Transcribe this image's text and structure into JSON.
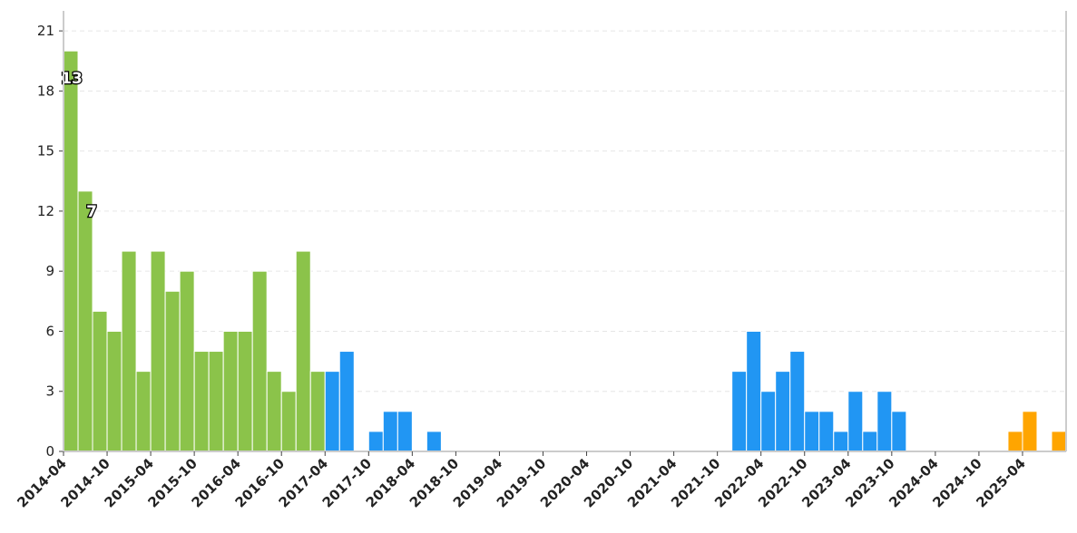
{
  "chart_data": {
    "type": "histogram",
    "bins": [
      "2014-04",
      "2014-06",
      "2014-08",
      "2014-10",
      "2014-12",
      "2015-02",
      "2015-04",
      "2015-06",
      "2015-08",
      "2015-10",
      "2015-12",
      "2016-02",
      "2016-04",
      "2016-06",
      "2016-08",
      "2016-10",
      "2016-12",
      "2017-02",
      "2017-04",
      "2017-06",
      "2017-08",
      "2017-10",
      "2017-12",
      "2018-02",
      "2018-04",
      "2018-06",
      "2018-08",
      "2018-10",
      "2018-12",
      "2019-02",
      "2019-04",
      "2019-06",
      "2019-08",
      "2019-10",
      "2019-12",
      "2020-02",
      "2020-04",
      "2020-06",
      "2020-08",
      "2020-10",
      "2020-12",
      "2021-02",
      "2021-04",
      "2021-06",
      "2021-08",
      "2021-10",
      "2021-12",
      "2022-02",
      "2022-04",
      "2022-06",
      "2022-08",
      "2022-10",
      "2022-12",
      "2023-02",
      "2023-04",
      "2023-06",
      "2023-08",
      "2023-10",
      "2023-12",
      "2024-02",
      "2024-04",
      "2024-06",
      "2024-08",
      "2024-10",
      "2024-12",
      "2025-02",
      "2025-04",
      "2025-06",
      "2025-08",
      "2025-10"
    ],
    "values": [
      20,
      13,
      7,
      6,
      10,
      4,
      10,
      8,
      9,
      5,
      5,
      6,
      6,
      9,
      4,
      3,
      10,
      4,
      4,
      5,
      0,
      1,
      2,
      2,
      0,
      1,
      0,
      0,
      0,
      0,
      0,
      0,
      0,
      0,
      0,
      0,
      0,
      0,
      0,
      0,
      0,
      0,
      0,
      0,
      0,
      0,
      4,
      6,
      3,
      4,
      5,
      2,
      2,
      1,
      3,
      1,
      3,
      2,
      0,
      0,
      0,
      0,
      0,
      0,
      0,
      1,
      2,
      0,
      1
    ],
    "colors": [
      "#8bc34a",
      "#8bc34a",
      "#8bc34a",
      "#8bc34a",
      "#8bc34a",
      "#8bc34a",
      "#8bc34a",
      "#8bc34a",
      "#8bc34a",
      "#8bc34a",
      "#8bc34a",
      "#8bc34a",
      "#8bc34a",
      "#8bc34a",
      "#8bc34a",
      "#8bc34a",
      "#8bc34a",
      "#8bc34a",
      "#2196f3",
      "#2196f3",
      "#2196f3",
      "#2196f3",
      "#2196f3",
      "#2196f3",
      "#2196f3",
      "#2196f3",
      "#2196f3",
      "#2196f3",
      "#2196f3",
      "#2196f3",
      "#2196f3",
      "#2196f3",
      "#2196f3",
      "#2196f3",
      "#2196f3",
      "#2196f3",
      "#2196f3",
      "#2196f3",
      "#2196f3",
      "#2196f3",
      "#2196f3",
      "#2196f3",
      "#2196f3",
      "#2196f3",
      "#2196f3",
      "#2196f3",
      "#2196f3",
      "#2196f3",
      "#2196f3",
      "#2196f3",
      "#2196f3",
      "#2196f3",
      "#2196f3",
      "#2196f3",
      "#2196f3",
      "#2196f3",
      "#2196f3",
      "#2196f3",
      "#2196f3",
      "#2196f3",
      "#2196f3",
      "#2196f3",
      "#2196f3",
      "#2196f3",
      "#2196f3",
      "#ffa500",
      "#ffa500",
      "#ffa500",
      "#ffa500"
    ],
    "annotations": [
      "13",
      "7"
    ],
    "xlim": [
      "2014-04",
      "2025-10"
    ],
    "xticks": [
      "2014-04",
      "2014-10",
      "2015-04",
      "2015-10",
      "2016-04",
      "2016-10",
      "2017-04",
      "2017-10",
      "2018-04",
      "2018-10",
      "2019-04",
      "2019-10",
      "2020-04",
      "2020-10",
      "2021-04",
      "2021-10",
      "2022-04",
      "2022-10",
      "2023-04",
      "2023-10",
      "2024-04",
      "2024-10",
      "2025-04"
    ],
    "ylim": [
      0,
      22
    ],
    "yticks": [
      0,
      3,
      6,
      9,
      12,
      15,
      18,
      21
    ],
    "grid": true
  }
}
